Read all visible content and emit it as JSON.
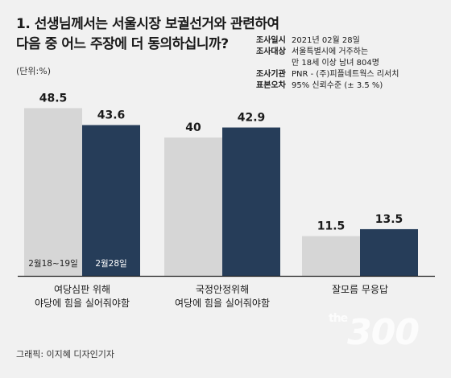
{
  "title": "1. 선생님께서는 서울시장 보궐선거와 관련하여\n다음 중 어느 주장에 더 동의하십니까?",
  "unit": "(단위:%)",
  "survey_info": [
    {
      "key": "조사일시",
      "value": "2021년 02월 28일"
    },
    {
      "key": "조사대상",
      "value": "서울특별시에 거주하는\n만 18세 이상 남녀 804명"
    },
    {
      "key": "조사기관",
      "value": "PNR - (주)피플네트웍스 리서치"
    },
    {
      "key": "표본오차",
      "value": "95% 신뢰수준 (± 3.5 %)"
    }
  ],
  "credit": "그래픽: 이지혜 디자인기자",
  "watermark": {
    "small": "the",
    "big": "300"
  },
  "colors": {
    "series1": "#d6d6d6",
    "series2": "#263d59",
    "baseline": "#222222",
    "bar_label_dark": "#ffffff"
  },
  "chart_data": {
    "type": "bar",
    "categories": [
      "여당심판 위해\n야당에 힘을 실어줘야함",
      "국정안정위해\n여당에 힘을 실어줘야함",
      "잘모름 무응답"
    ],
    "series": [
      {
        "name": "2월18~19일",
        "values": [
          48.5,
          40,
          11.5
        ]
      },
      {
        "name": "2월28일",
        "values": [
          43.6,
          42.9,
          13.5
        ]
      }
    ],
    "ylim": [
      0,
      50
    ],
    "value_labels": [
      [
        "48.5",
        "43.6"
      ],
      [
        "40",
        "42.9"
      ],
      [
        "11.5",
        "13.5"
      ]
    ]
  }
}
